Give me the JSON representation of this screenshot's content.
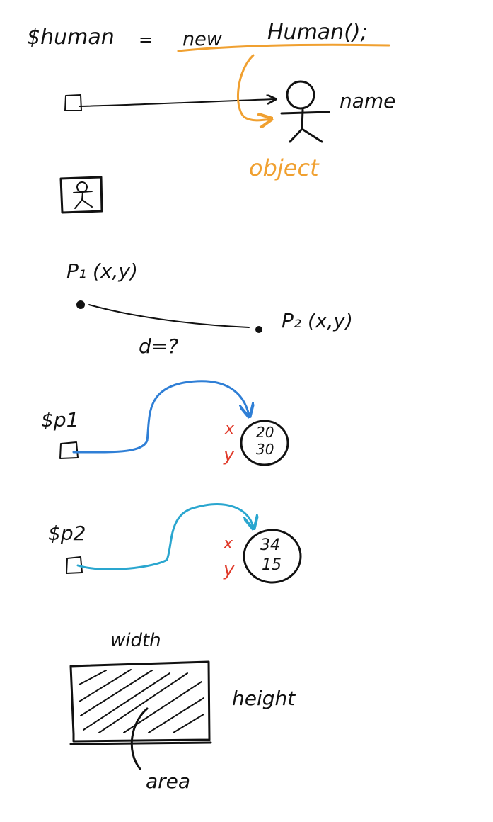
{
  "colors": {
    "ink": "#111111",
    "orange": "#f0a030",
    "blue": "#2f7fd6",
    "cyan": "#2aa6cf",
    "red": "#e03a2a"
  },
  "section_new_human": {
    "var_label": "$human",
    "equals": "=",
    "new_keyword": "new",
    "class_call": "Human();",
    "property_label": "name",
    "object_label": "object"
  },
  "section_points": {
    "p1_label": "P₁ (x,y)",
    "p2_label": "P₂ (x,y)",
    "distance_label": "d=?"
  },
  "section_p1": {
    "var_label": "$p1",
    "x_marker": "x",
    "y_marker": "y",
    "x_value": "20",
    "y_value": "30"
  },
  "section_p2": {
    "var_label": "$p2",
    "x_marker": "x",
    "y_marker": "y",
    "x_value": "34",
    "y_value": "15"
  },
  "section_rectangle": {
    "width_label": "width",
    "height_label": "height",
    "area_label": "area"
  }
}
